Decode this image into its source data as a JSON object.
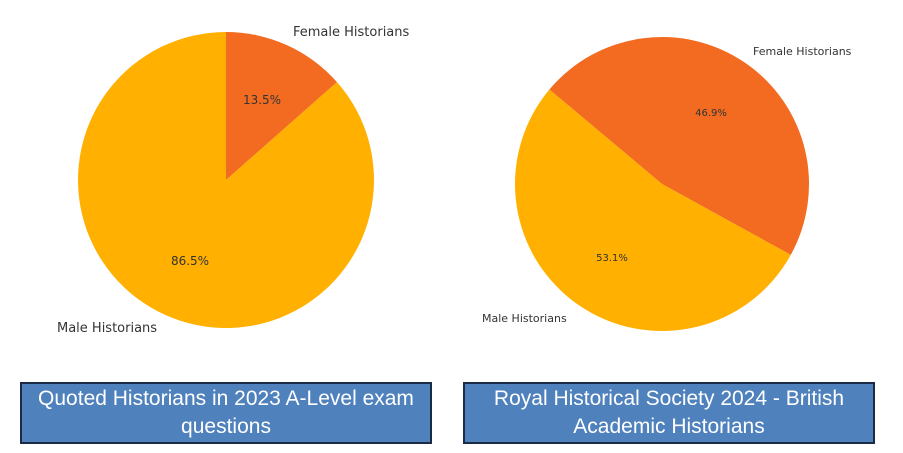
{
  "colors": {
    "female": "#F26B21",
    "male": "#FFB000",
    "caption_fill": "#4F81BD",
    "caption_border": "#1B2B45"
  },
  "chart_data": [
    {
      "type": "pie",
      "title": "Quoted Historians in 2023 A-Level exam questions",
      "slices": [
        {
          "label": "Female Historians",
          "value": 13.5,
          "pct_label": "13.5%"
        },
        {
          "label": "Male Historians",
          "value": 86.5,
          "pct_label": "86.5%"
        }
      ]
    },
    {
      "type": "pie",
      "title": "Royal Historical Society 2024 - British Academic Historians",
      "slices": [
        {
          "label": "Female Historians",
          "value": 46.9,
          "pct_label": "46.9%"
        },
        {
          "label": "Male Historians",
          "value": 53.1,
          "pct_label": "53.1%"
        }
      ]
    }
  ]
}
